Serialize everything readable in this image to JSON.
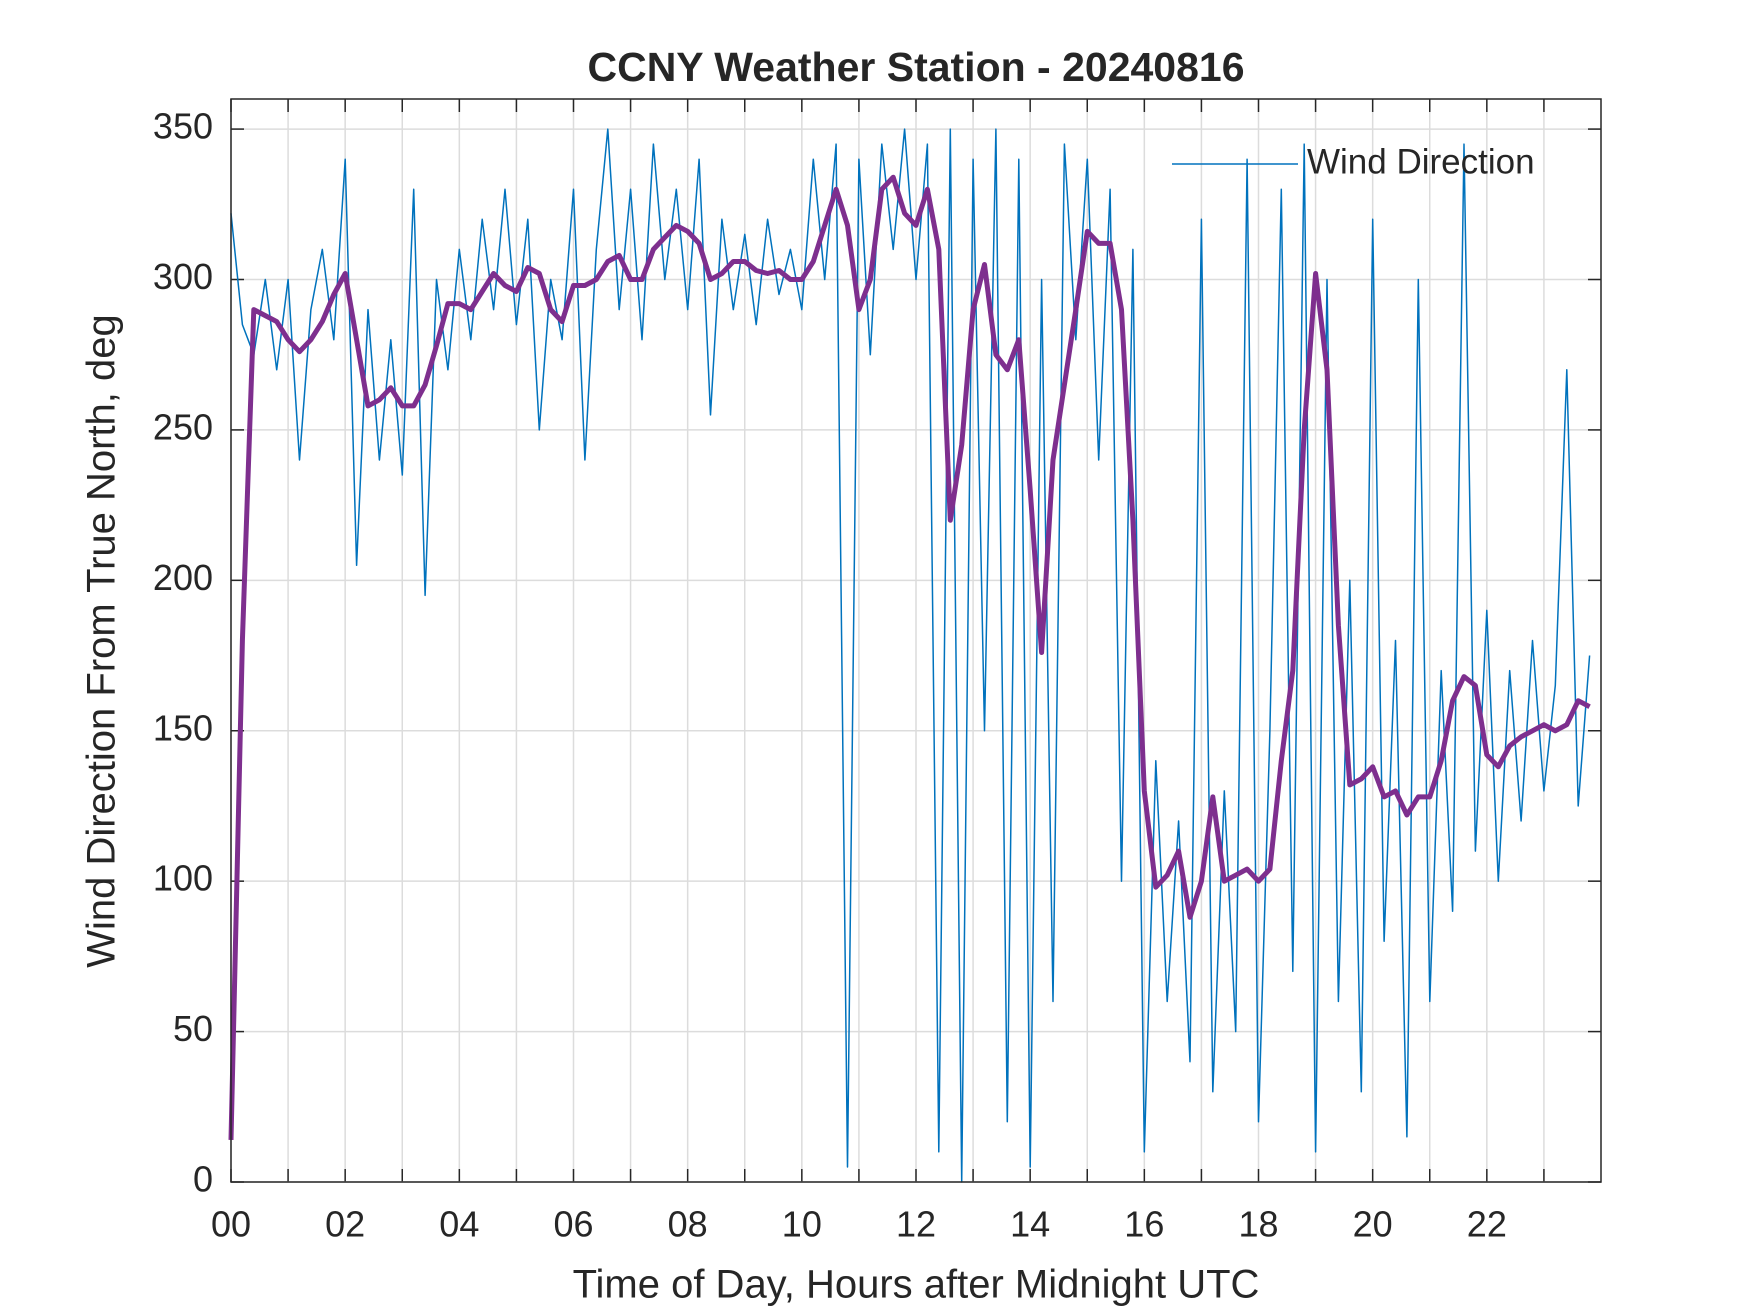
{
  "chart_data": {
    "type": "line",
    "title": "CCNY Weather Station - 20240816",
    "xlabel": "Time of Day, Hours after Midnight UTC",
    "ylabel": "Wind Direction From True North, deg",
    "xlim": [
      0,
      24
    ],
    "ylim": [
      0,
      360
    ],
    "xticks": [
      {
        "value": 0,
        "label": "00"
      },
      {
        "value": 2,
        "label": "02"
      },
      {
        "value": 4,
        "label": "04"
      },
      {
        "value": 6,
        "label": "06"
      },
      {
        "value": 8,
        "label": "08"
      },
      10,
      12,
      14,
      16,
      18,
      20,
      22
    ],
    "xminorticks": [
      1,
      3,
      5,
      7,
      9,
      11,
      13,
      15,
      17,
      19,
      21,
      23
    ],
    "yticks": [
      0,
      50,
      100,
      150,
      200,
      250,
      300,
      350
    ],
    "grid": true,
    "legend": "upper-right",
    "x": [
      0,
      0.2,
      0.4,
      0.6,
      0.8,
      1,
      1.2,
      1.4,
      1.6,
      1.8,
      2,
      2.2,
      2.4,
      2.6,
      2.8,
      3,
      3.2,
      3.4,
      3.6,
      3.8,
      4,
      4.2,
      4.4,
      4.6,
      4.8,
      5,
      5.2,
      5.4,
      5.6,
      5.8,
      6,
      6.2,
      6.4,
      6.6,
      6.8,
      7,
      7.2,
      7.4,
      7.6,
      7.8,
      8,
      8.2,
      8.4,
      8.6,
      8.8,
      9,
      9.2,
      9.4,
      9.6,
      9.8,
      10,
      10.2,
      10.4,
      10.6,
      10.8,
      11,
      11.2,
      11.4,
      11.6,
      11.8,
      12,
      12.2,
      12.4,
      12.6,
      12.8,
      13,
      13.2,
      13.4,
      13.6,
      13.8,
      14,
      14.2,
      14.4,
      14.6,
      14.8,
      15,
      15.2,
      15.4,
      15.6,
      15.8,
      16,
      16.2,
      16.4,
      16.6,
      16.8,
      17,
      17.2,
      17.4,
      17.6,
      17.8,
      18,
      18.2,
      18.4,
      18.6,
      18.8,
      19,
      19.2,
      19.4,
      19.6,
      19.8,
      20,
      20.2,
      20.4,
      20.6,
      20.8,
      21,
      21.2,
      21.4,
      21.6,
      21.8,
      22,
      22.2,
      22.4,
      22.6,
      22.8,
      23,
      23.2,
      23.4,
      23.6,
      23.8
    ],
    "series": [
      {
        "name": "Wind Direction",
        "color": "#0072bd",
        "width": 1.5,
        "values": [
          322,
          285,
          275,
          300,
          270,
          300,
          240,
          290,
          310,
          280,
          340,
          205,
          290,
          240,
          280,
          235,
          330,
          195,
          300,
          270,
          310,
          280,
          320,
          290,
          330,
          285,
          320,
          250,
          300,
          280,
          330,
          240,
          310,
          350,
          290,
          330,
          280,
          345,
          300,
          330,
          290,
          340,
          255,
          320,
          290,
          315,
          285,
          320,
          295,
          310,
          290,
          340,
          300,
          345,
          5,
          340,
          275,
          345,
          310,
          350,
          300,
          345,
          10,
          350,
          0,
          340,
          150,
          350,
          20,
          340,
          5,
          300,
          60,
          345,
          280,
          340,
          240,
          330,
          100,
          310,
          10,
          140,
          60,
          120,
          40,
          320,
          30,
          130,
          50,
          340,
          20,
          150,
          330,
          70,
          345,
          10,
          300,
          60,
          200,
          30,
          320,
          80,
          180,
          15,
          300,
          60,
          170,
          90,
          345,
          110,
          190,
          100,
          170,
          120,
          180,
          130,
          165,
          270,
          125,
          175
        ]
      },
      {
        "color": "#7e2f8e",
        "width": 5,
        "values": [
          14,
          180,
          290,
          288,
          286,
          280,
          276,
          280,
          286,
          295,
          302,
          280,
          258,
          260,
          264,
          258,
          258,
          265,
          278,
          292,
          292,
          290,
          296,
          302,
          298,
          296,
          304,
          302,
          290,
          286,
          298,
          298,
          300,
          306,
          308,
          300,
          300,
          310,
          314,
          318,
          316,
          312,
          300,
          302,
          306,
          306,
          303,
          302,
          303,
          300,
          300,
          306,
          318,
          330,
          318,
          290,
          300,
          330,
          334,
          322,
          318,
          330,
          310,
          220,
          245,
          290,
          305,
          275,
          270,
          280,
          230,
          176,
          240,
          265,
          290,
          316,
          312,
          312,
          290,
          220,
          130,
          98,
          102,
          110,
          88,
          100,
          128,
          100,
          102,
          104,
          100,
          104,
          140,
          170,
          250,
          302,
          270,
          185,
          132,
          134,
          138,
          128,
          130,
          122,
          128,
          128,
          140,
          160,
          168,
          165,
          142,
          138,
          145,
          148,
          150,
          152,
          150,
          152,
          160,
          158
        ]
      }
    ]
  }
}
